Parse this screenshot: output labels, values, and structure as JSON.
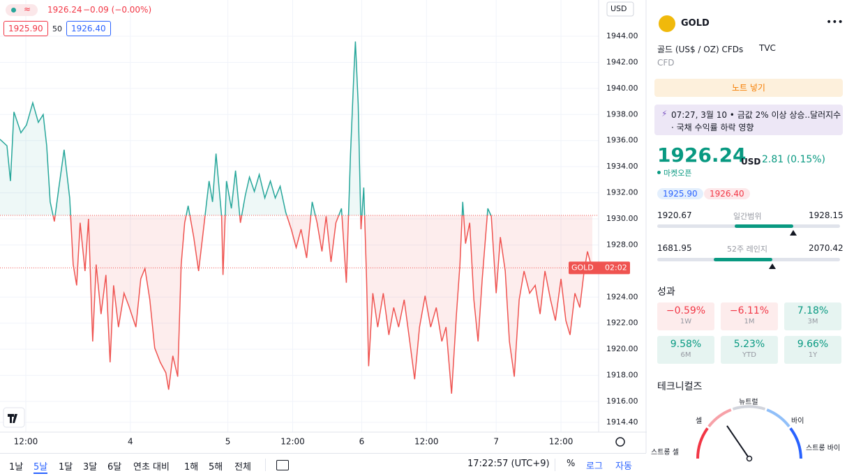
{
  "header": {
    "legend_value": "1926.24",
    "legend_change": "−0.09 (−0.00%)",
    "bid": "1925.90",
    "spread": "50",
    "ask": "1926.40",
    "currency": "USD"
  },
  "chart_data": {
    "type": "line",
    "x": [
      0,
      1.25,
      1.875,
      2.5,
      3.75,
      4.75,
      5.875,
      6.875,
      7.75,
      8.375,
      9,
      9.75,
      10.625,
      11.5,
      12.5,
      13.125,
      13.75,
      14.375,
      15.25,
      15.875,
      16.625,
      17.25,
      18.125,
      19,
      19.75,
      20.375,
      21.25,
      22.25,
      23.125,
      24.375,
      25.25,
      26,
      26.875,
      27.75,
      28.75,
      29.75,
      30.25,
      31,
      31.875,
      32.5,
      33.125,
      33.75,
      34.75,
      35.625,
      36.5,
      37.5,
      38.125,
      38.75,
      39.75,
      40,
      40.625,
      41.5,
      42.25,
      43.125,
      44,
      44.75,
      45.625,
      46.5,
      47.5,
      48.5,
      49.375,
      50.25,
      51.25,
      52.25,
      53.125,
      54,
      55,
      56,
      56.875,
      57.75,
      58.5,
      59.375,
      60.25,
      61.25,
      62.125,
      62.875,
      63.5,
      63.75,
      64.25,
      64.75,
      65.25,
      65.75,
      66.125,
      66.875,
      67.75,
      68.75,
      69.75,
      70.625,
      71.5,
      72.5,
      73.5,
      74.375,
      75.25,
      76.25,
      77.25,
      78.25,
      79.25,
      80,
      81,
      81.875,
      82.5,
      83,
      83.5,
      84.25,
      85,
      85.75,
      86.5,
      87.5,
      88.125,
      89,
      89.75,
      90.625,
      91.375,
      92.25,
      93.125,
      94,
      95,
      96,
      96.875,
      97.75,
      98.75,
      99.625,
      100.625,
      101.5,
      102.25,
      103.125,
      104,
      104.75,
      105.375,
      106,
      106.25
    ],
    "series": [
      {
        "name": "GOLD",
        "color": "#26a69a",
        "color_below": "#ef5350",
        "values": [
          1936.1,
          1935.6,
          1932.9,
          1938.2,
          1936.6,
          1937.2,
          1938.9,
          1937.4,
          1938.0,
          1935.6,
          1931.3,
          1929.8,
          1932.6,
          1935.3,
          1931.6,
          1926.5,
          1924.9,
          1929.7,
          1926.0,
          1930.0,
          1920.6,
          1926.5,
          1922.7,
          1925.7,
          1919.0,
          1924.9,
          1921.7,
          1924.3,
          1923.3,
          1921.7,
          1925.4,
          1926.2,
          1923.8,
          1920.1,
          1919.0,
          1918.2,
          1916.9,
          1919.5,
          1917.9,
          1926.5,
          1929.7,
          1931.0,
          1928.6,
          1926.0,
          1929.2,
          1932.9,
          1931.3,
          1935.0,
          1930.2,
          1925.7,
          1932.9,
          1930.8,
          1933.7,
          1929.7,
          1931.8,
          1933.2,
          1932.1,
          1933.4,
          1931.6,
          1932.9,
          1931.6,
          1932.5,
          1930.5,
          1929.2,
          1927.8,
          1929.2,
          1927.0,
          1931.3,
          1929.7,
          1927.5,
          1930.2,
          1926.7,
          1929.7,
          1930.8,
          1925.1,
          1935.0,
          1941.4,
          1943.6,
          1938.8,
          1929.2,
          1932.4,
          1925.4,
          1918.7,
          1924.3,
          1921.7,
          1924.3,
          1921.1,
          1923.2,
          1921.7,
          1923.8,
          1920.6,
          1917.7,
          1921.7,
          1924.1,
          1921.7,
          1923.2,
          1920.6,
          1921.7,
          1916.6,
          1922.7,
          1926.5,
          1931.3,
          1928.1,
          1929.7,
          1923.8,
          1920.6,
          1925.4,
          1930.8,
          1930.2,
          1924.3,
          1928.6,
          1926.0,
          1920.6,
          1917.9,
          1923.8,
          1926.0,
          1924.3,
          1924.9,
          1922.7,
          1926.0,
          1923.8,
          1922.2,
          1925.4,
          1922.2,
          1921.1,
          1924.3,
          1923.2,
          1925.9,
          1927.5,
          1926.5,
          1926.24
        ]
      }
    ],
    "baseline": 1930.27,
    "countdown": "02:02",
    "xlim": [
      0,
      107
    ],
    "ylim": [
      1913.65,
      1946.78
    ],
    "xticks": [
      {
        "value": 4.625,
        "label": "12:00"
      },
      {
        "value": 23.375,
        "label": "4"
      },
      {
        "value": 40.875,
        "label": "5"
      },
      {
        "value": 52.5,
        "label": "12:00"
      },
      {
        "value": 64.875,
        "label": "6"
      },
      {
        "value": 76.5,
        "label": "12:00"
      },
      {
        "value": 89,
        "label": "7"
      },
      {
        "value": 100.625,
        "label": "12:00"
      }
    ],
    "yticks": [
      {
        "value": 1914.4,
        "label": "1914.40"
      },
      {
        "value": 1916,
        "label": "1916.00"
      },
      {
        "value": 1918,
        "label": "1918.00"
      },
      {
        "value": 1920,
        "label": "1920.00"
      },
      {
        "value": 1922,
        "label": "1922.00"
      },
      {
        "value": 1924,
        "label": "1924.00"
      },
      {
        "value": 1928,
        "label": "1928.00"
      },
      {
        "value": 1930,
        "label": "1930.00"
      },
      {
        "value": 1932,
        "label": "1932.00"
      },
      {
        "value": 1934,
        "label": "1934.00"
      },
      {
        "value": 1936,
        "label": "1936.00"
      },
      {
        "value": 1938,
        "label": "1938.00"
      },
      {
        "value": 1940,
        "label": "1940.00"
      },
      {
        "value": 1942,
        "label": "1942.00"
      },
      {
        "value": 1944,
        "label": "1944.00"
      }
    ],
    "grid": true
  },
  "footer": {
    "ranges": [
      "1날",
      "5날",
      "1달",
      "3달",
      "6달",
      "연초 대비",
      "1해",
      "5해",
      "전체"
    ],
    "active_range": 1,
    "time": "17:22:57 (UTC+9)",
    "percent": "%",
    "log": "로그",
    "auto": "자동"
  },
  "sidebar": {
    "symbol": "GOLD",
    "description": "골드 (US$ / OZ) CFDs",
    "source": "TVC",
    "kind": "CFD",
    "note_button": "노트 넣기",
    "news": {
      "time": "07:27, 3월 10",
      "text": "금값 2% 이상 상승..달러지수 · 국채 수익률 하락 영향"
    },
    "price": "1926.24",
    "currency": "USD",
    "change": "2.81 (0.15%)",
    "status": "마켓오픈",
    "bid": "1925.90",
    "ask": "1926.40",
    "day_range": {
      "low": "1920.67",
      "label": "일간범위",
      "high": "1928.15"
    },
    "range_52w": {
      "low": "1681.95",
      "label": "52주 레인지",
      "high": "2070.42"
    },
    "performance": {
      "title": "성과",
      "items": [
        {
          "value": "−0.59%",
          "period": "1W"
        },
        {
          "value": "−6.11%",
          "period": "1M"
        },
        {
          "value": "7.18%",
          "period": "3M"
        },
        {
          "value": "9.58%",
          "period": "6M"
        },
        {
          "value": "5.23%",
          "period": "YTD"
        },
        {
          "value": "9.66%",
          "period": "1Y"
        }
      ]
    },
    "technicals": {
      "title": "테크니컬즈",
      "strong_sell": "스트롱 셀",
      "sell": "셀",
      "neutral": "뉴트럴",
      "buy": "바이",
      "strong_buy": "스트롱 바이"
    }
  }
}
